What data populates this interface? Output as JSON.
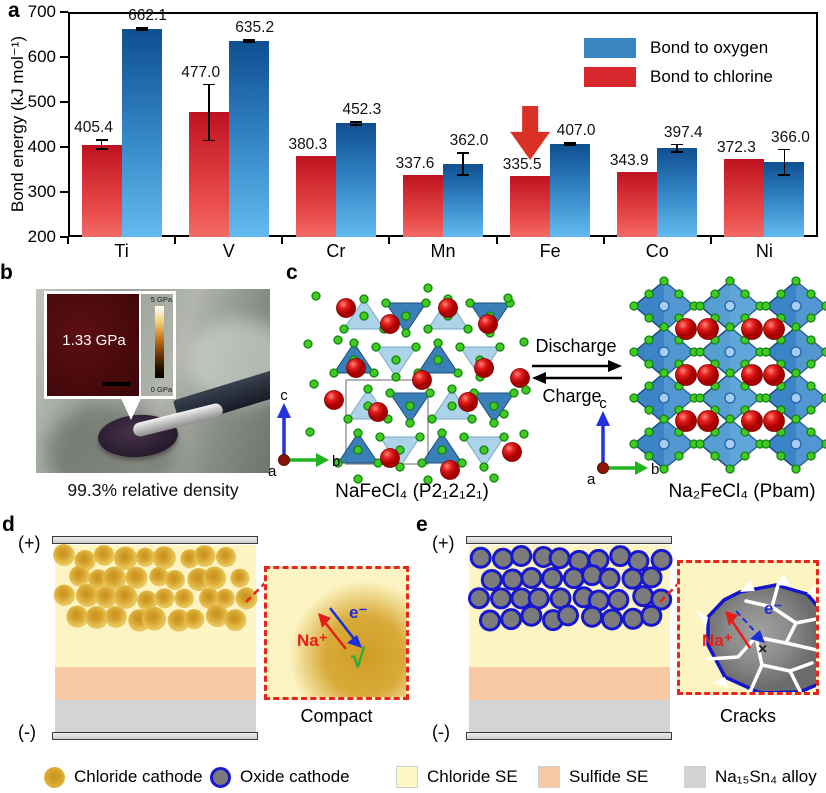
{
  "panels": {
    "a": "a",
    "b": "b",
    "c": "c",
    "d": "d",
    "e": "e"
  },
  "chart_data": {
    "type": "bar",
    "title": "",
    "xlabel": "",
    "ylabel": "Bond energy (kJ mol⁻¹)",
    "categories": [
      "Ti",
      "V",
      "Cr",
      "Mn",
      "Fe",
      "Co",
      "Ni"
    ],
    "series": [
      {
        "name": "Bond to chlorine",
        "color": "#d7282d",
        "values": [
          405.4,
          477.0,
          380.3,
          337.6,
          335.5,
          343.9,
          372.3
        ],
        "errors": [
          12,
          64,
          0,
          0,
          0,
          0,
          0
        ]
      },
      {
        "name": "Bond to oxygen",
        "color": "#3a87c0",
        "values": [
          662.1,
          635.2,
          452.3,
          362.0,
          407.0,
          397.4,
          366.0
        ],
        "errors": [
          4,
          4,
          5,
          26,
          4,
          10,
          30
        ]
      }
    ],
    "ylim": [
      200,
      700
    ],
    "yticks": [
      200,
      300,
      400,
      500,
      600,
      700
    ],
    "legend": [
      {
        "label": "Bond to oxygen",
        "color": "#3a87c0"
      },
      {
        "label": "Bond to chlorine",
        "color": "#d7282d"
      }
    ],
    "grid": false,
    "legend_position": "upper right",
    "highlight": {
      "category": "Fe",
      "marker": "red-down-arrow",
      "color": "#da3126"
    }
  },
  "panel_b": {
    "inset_value": "1.33 GPa",
    "scale_max": "5 GPa",
    "scale_min": "0 GPa",
    "caption": "99.3% relative density"
  },
  "panel_c": {
    "discharge": "Discharge",
    "charge": "Charge",
    "left_label": "NaFeCl₄ (P2₁2₁2₁)",
    "right_label": "Na₂FeCl₄ (Pbam)",
    "axis_a": "a",
    "axis_b": "b",
    "axis_c": "c"
  },
  "panel_d": {
    "plus": "(+)",
    "minus": "(-)",
    "na_ion": "Na⁺",
    "electron": "e⁻",
    "check": "√",
    "caption": "Compact"
  },
  "panel_e": {
    "plus": "(+)",
    "minus": "(-)",
    "na_ion": "Na⁺",
    "electron": "e⁻",
    "cross": "×",
    "caption": "Cracks"
  },
  "legend": {
    "items": [
      {
        "label": "Chloride cathode",
        "swatch": "gold-circle"
      },
      {
        "label": "Oxide cathode",
        "swatch": "oxide-circle"
      },
      {
        "label": "Chloride SE",
        "swatch": "square",
        "color": "#fdf6c5"
      },
      {
        "label": "Sulfide SE",
        "swatch": "square",
        "color": "#f8c9a5"
      },
      {
        "label": "Na₁₅Sn₄ alloy",
        "swatch": "square",
        "color": "#d3d3d3"
      }
    ]
  },
  "colors": {
    "chloride_se": "#fcf5c3",
    "sulfide_se": "#f8c9a5",
    "alloy": "#d4d4d4",
    "oxide_border": "#1717cf",
    "bar_red": "#d7282d",
    "bar_blue": "#3a87c0"
  }
}
